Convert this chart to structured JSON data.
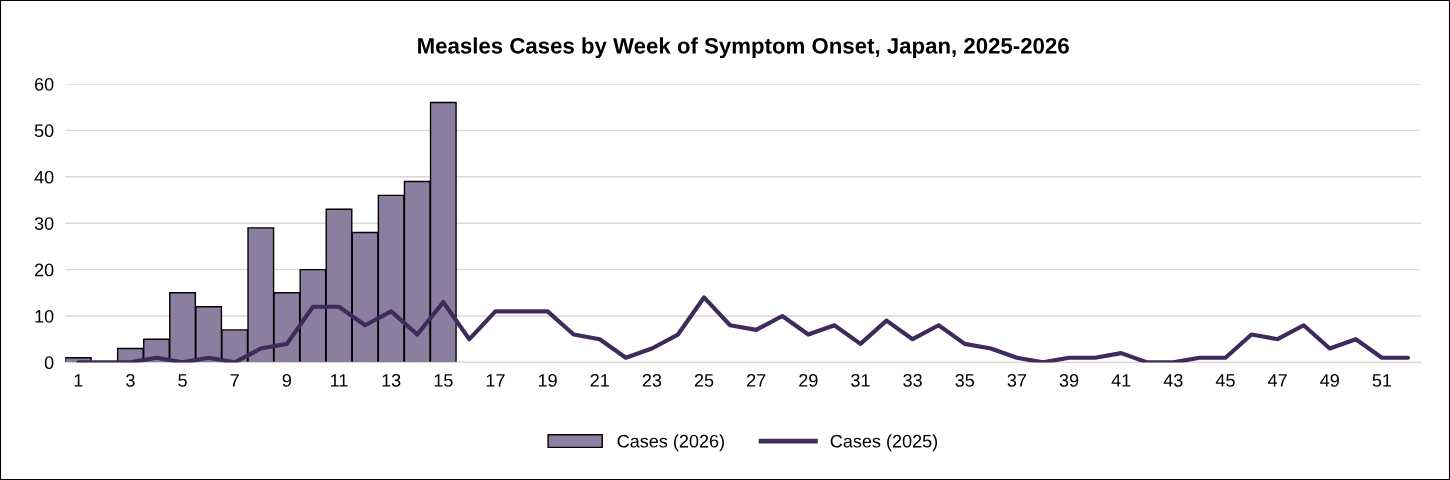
{
  "chart_data": {
    "type": "bar",
    "title": "Measles Cases by Week of Symptom Onset, Japan, 2025-2026",
    "categories": [
      "1",
      null,
      "3",
      null,
      "5",
      null,
      "7",
      null,
      "9",
      null,
      "11",
      null,
      "13",
      null,
      "15",
      null,
      "17",
      null,
      "19",
      null,
      "21",
      null,
      "23",
      null,
      "25",
      null,
      "27",
      null,
      "29",
      null,
      "31",
      null,
      "33",
      null,
      "35",
      null,
      "37",
      null,
      "39",
      null,
      "41",
      null,
      "43",
      null,
      "45",
      null,
      "47",
      null,
      "49",
      null,
      "51",
      null
    ],
    "series": [
      {
        "name": "Cases (2026)",
        "color": "#8b7fa0",
        "values": [
          1,
          0,
          3,
          5,
          15,
          12,
          7,
          29,
          15,
          20,
          33,
          28,
          36,
          39,
          56,
          null,
          null,
          null,
          null,
          null,
          null,
          null,
          null,
          null,
          null,
          null,
          null,
          null,
          null,
          null,
          null,
          null,
          null,
          null,
          null,
          null,
          null,
          null,
          null,
          null,
          null,
          null,
          null,
          null,
          null,
          null,
          null,
          null,
          null,
          null,
          null,
          null
        ]
      },
      {
        "name": "Cases (2025)",
        "type": "line",
        "color": "#3f2a5c",
        "values": [
          0,
          0,
          0,
          1,
          0,
          1,
          0,
          3,
          4,
          12,
          12,
          8,
          11,
          6,
          13,
          5,
          11,
          11,
          11,
          6,
          5,
          1,
          3,
          6,
          14,
          8,
          7,
          10,
          6,
          8,
          4,
          9,
          5,
          8,
          4,
          3,
          1,
          0,
          1,
          1,
          2,
          0,
          0,
          1,
          1,
          6,
          5,
          8,
          3,
          5,
          1,
          1
        ]
      }
    ],
    "ylim": [
      0,
      60
    ],
    "yticks": [
      0,
      10,
      20,
      30,
      40,
      50,
      60
    ],
    "grid": "y",
    "legend": "bottom",
    "marker": "none",
    "line_style": "solid"
  }
}
